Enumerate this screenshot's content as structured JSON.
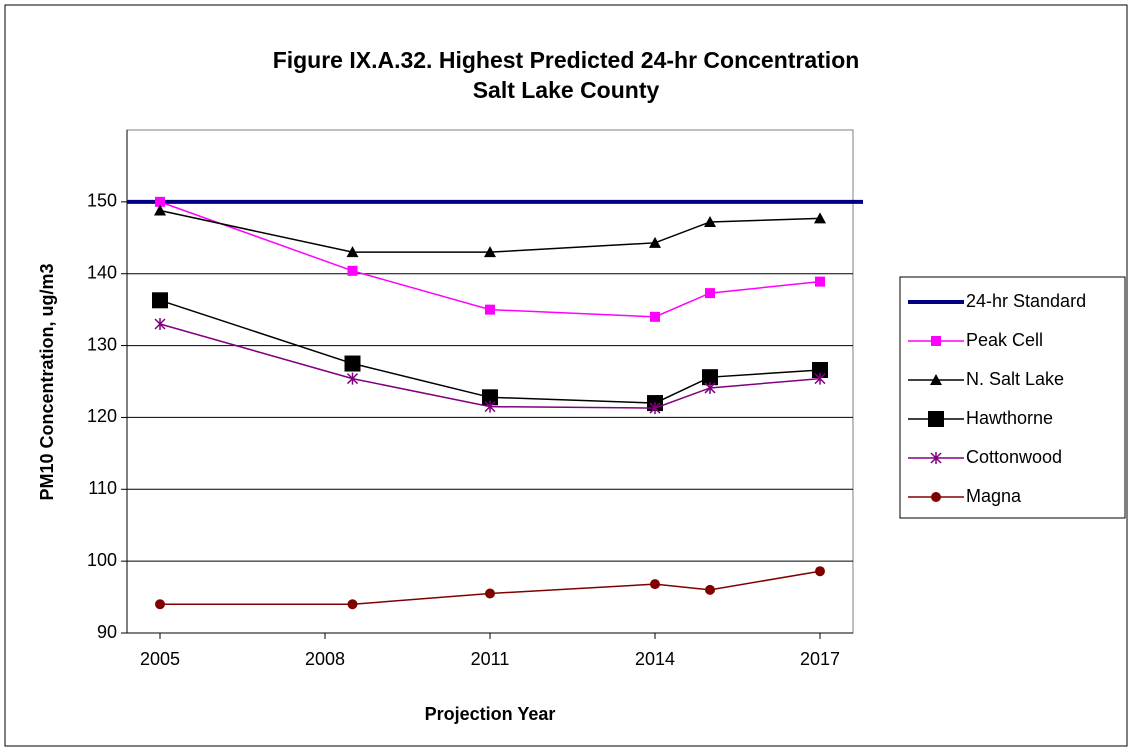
{
  "chart_data": {
    "type": "line",
    "title": [
      "Figure IX.A.32.  Highest Predicted 24-hr Concentration",
      "Salt Lake County"
    ],
    "x_label": "Projection Year",
    "y_label": "PM10 Concentration, ug/m3",
    "x": [
      2005,
      2008.5,
      2011,
      2014,
      2015,
      2017
    ],
    "xlim": [
      2004.4,
      2017.6
    ],
    "xticks": [
      2005,
      2008,
      2011,
      2014,
      2017
    ],
    "ylim": [
      90,
      160
    ],
    "yticks": [
      90,
      100,
      110,
      120,
      130,
      140,
      150
    ],
    "grid": true,
    "legend": "right",
    "reference_line": {
      "name": "24-hr Standard",
      "value": 150,
      "color": "#000080"
    },
    "series": [
      {
        "name": "Peak Cell",
        "color": "#ff00ff",
        "marker": "square",
        "values": [
          150,
          140.4,
          135,
          134,
          137.3,
          138.9
        ]
      },
      {
        "name": "N. Salt Lake",
        "color": "#000000",
        "marker": "triangle",
        "values": [
          148.8,
          143,
          143,
          144.3,
          147.2,
          147.7
        ]
      },
      {
        "name": "Hawthorne",
        "color": "#000000",
        "marker": "bigsquare",
        "values": [
          136.3,
          127.5,
          122.8,
          122,
          125.6,
          126.6
        ]
      },
      {
        "name": "Cottonwood",
        "color": "#800080",
        "marker": "star",
        "values": [
          133,
          125.4,
          121.5,
          121.3,
          124.1,
          125.4
        ]
      },
      {
        "name": "Magna",
        "color": "#800000",
        "marker": "circle",
        "values": [
          94,
          94,
          95.5,
          96.8,
          96,
          98.6
        ]
      }
    ]
  }
}
